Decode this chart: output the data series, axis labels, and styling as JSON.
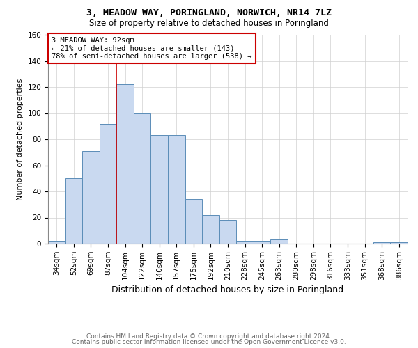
{
  "title1": "3, MEADOW WAY, PORINGLAND, NORWICH, NR14 7LZ",
  "title2": "Size of property relative to detached houses in Poringland",
  "xlabel": "Distribution of detached houses by size in Poringland",
  "ylabel": "Number of detached properties",
  "bin_labels": [
    "34sqm",
    "52sqm",
    "69sqm",
    "87sqm",
    "104sqm",
    "122sqm",
    "140sqm",
    "157sqm",
    "175sqm",
    "192sqm",
    "210sqm",
    "228sqm",
    "245sqm",
    "263sqm",
    "280sqm",
    "298sqm",
    "316sqm",
    "333sqm",
    "351sqm",
    "368sqm",
    "386sqm"
  ],
  "bar_heights": [
    2,
    50,
    71,
    92,
    122,
    100,
    83,
    83,
    34,
    22,
    18,
    2,
    2,
    3,
    0,
    0,
    0,
    0,
    0,
    1,
    1
  ],
  "bar_color": "#c9d9f0",
  "bar_edge_color": "#5b8db8",
  "vline_x": 3.5,
  "vline_color": "#cc0000",
  "annotation_text": "3 MEADOW WAY: 92sqm\n← 21% of detached houses are smaller (143)\n78% of semi-detached houses are larger (538) →",
  "annotation_box_color": "#ffffff",
  "annotation_box_edge_color": "#cc0000",
  "ylim": [
    0,
    160
  ],
  "yticks": [
    0,
    20,
    40,
    60,
    80,
    100,
    120,
    140,
    160
  ],
  "footer1": "Contains HM Land Registry data © Crown copyright and database right 2024.",
  "footer2": "Contains public sector information licensed under the Open Government Licence v3.0.",
  "title1_fontsize": 9.5,
  "title2_fontsize": 8.5,
  "xlabel_fontsize": 9,
  "ylabel_fontsize": 8,
  "tick_fontsize": 7.5,
  "footer_fontsize": 6.5,
  "annotation_fontsize": 7.5
}
